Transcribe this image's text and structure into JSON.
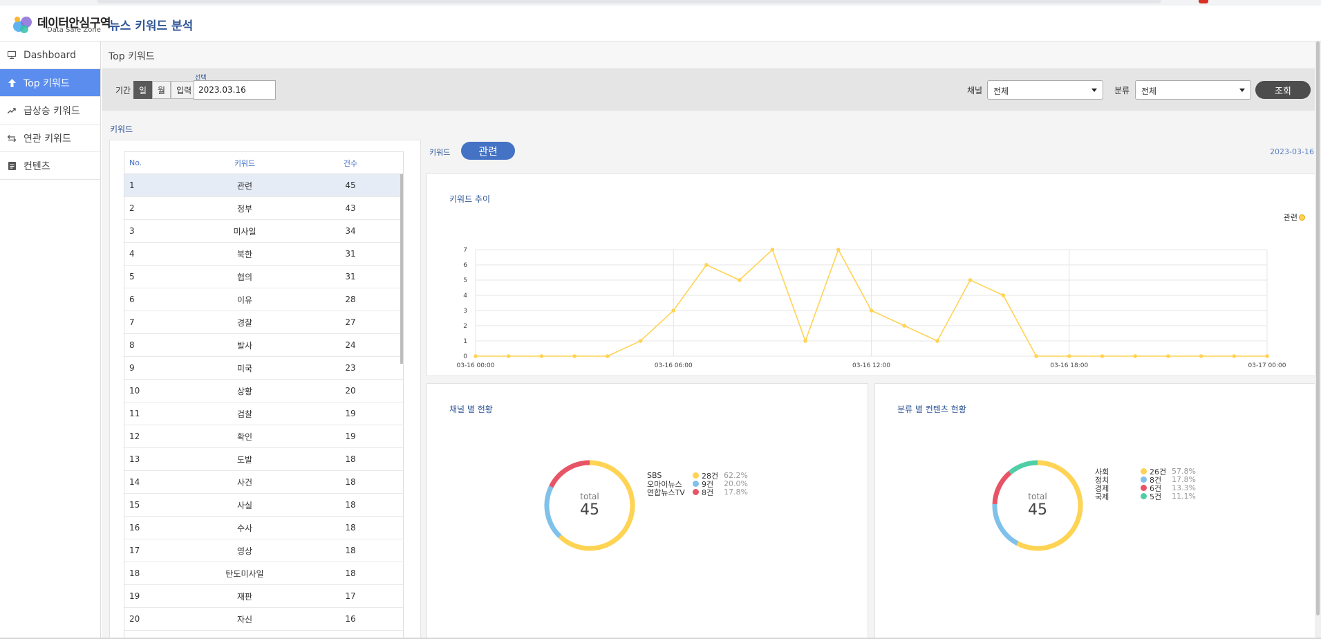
{
  "header": {
    "logo_title": "데이터안심구역",
    "logo_sub": "Data Safe Zone",
    "app_title": "뉴스 키워드 분석"
  },
  "sidebar": {
    "items": [
      {
        "label": "Dashboard",
        "icon": "monitor-icon",
        "active": false
      },
      {
        "label": "Top 키워드",
        "icon": "arrow-up-icon",
        "active": true
      },
      {
        "label": "급상승 키워드",
        "icon": "trending-up-icon",
        "active": false
      },
      {
        "label": "연관 키워드",
        "icon": "swap-icon",
        "active": false
      },
      {
        "label": "컨텐츠",
        "icon": "document-icon",
        "active": false
      }
    ]
  },
  "breadcrumb": "Top 키워드",
  "filter": {
    "period_label": "기간",
    "period_options": [
      "일",
      "월",
      "입력"
    ],
    "period_selected": "일",
    "date_tag": "선택",
    "date_value": "2023.03.16",
    "channel_label": "채널",
    "channel_value": "전체",
    "category_label": "분류",
    "category_value": "전체",
    "search_label": "조회"
  },
  "keywords": {
    "section_title": "키워드",
    "headers": {
      "no": "No.",
      "keyword": "키워드",
      "count": "건수"
    },
    "rows": [
      {
        "no": "1",
        "keyword": "관련",
        "count": "45"
      },
      {
        "no": "2",
        "keyword": "정부",
        "count": "43"
      },
      {
        "no": "3",
        "keyword": "미사일",
        "count": "34"
      },
      {
        "no": "4",
        "keyword": "북한",
        "count": "31"
      },
      {
        "no": "5",
        "keyword": "협의",
        "count": "31"
      },
      {
        "no": "6",
        "keyword": "이유",
        "count": "28"
      },
      {
        "no": "7",
        "keyword": "경찰",
        "count": "27"
      },
      {
        "no": "8",
        "keyword": "발사",
        "count": "24"
      },
      {
        "no": "9",
        "keyword": "미국",
        "count": "23"
      },
      {
        "no": "10",
        "keyword": "상황",
        "count": "20"
      },
      {
        "no": "11",
        "keyword": "검찰",
        "count": "19"
      },
      {
        "no": "12",
        "keyword": "확인",
        "count": "19"
      },
      {
        "no": "13",
        "keyword": "도발",
        "count": "18"
      },
      {
        "no": "14",
        "keyword": "사건",
        "count": "18"
      },
      {
        "no": "15",
        "keyword": "사실",
        "count": "18"
      },
      {
        "no": "16",
        "keyword": "수사",
        "count": "18"
      },
      {
        "no": "17",
        "keyword": "영상",
        "count": "18"
      },
      {
        "no": "18",
        "keyword": "탄도미사일",
        "count": "18"
      },
      {
        "no": "19",
        "keyword": "재판",
        "count": "17"
      },
      {
        "no": "20",
        "keyword": "자신",
        "count": "16"
      }
    ]
  },
  "detail": {
    "keyword_label": "키워드",
    "selected_keyword": "관련",
    "date": "2023-03-16"
  },
  "chart_data": [
    {
      "type": "line",
      "title": "키워드 추이",
      "xlabel": "",
      "ylabel": "",
      "x_ticks": [
        "03-16 00:00",
        "03-16 06:00",
        "03-16 12:00",
        "03-16 18:00",
        "03-17 00:00"
      ],
      "ylim": [
        0,
        7
      ],
      "y_ticks": [
        0,
        1,
        2,
        3,
        4,
        5,
        6,
        7
      ],
      "grid": true,
      "legend": "top-right",
      "series": [
        {
          "name": "관련",
          "color": "#ffd353",
          "values": [
            0,
            0,
            0,
            0,
            0,
            1,
            3,
            6,
            5,
            7,
            1,
            7,
            3,
            2,
            1,
            5,
            4,
            0,
            0,
            0,
            0,
            0,
            0,
            0,
            0
          ]
        }
      ]
    },
    {
      "type": "pie",
      "title": "채널 별 현황",
      "center_label": "total",
      "total": "45",
      "slices": [
        {
          "name": "SBS",
          "value": 28,
          "count": "28건",
          "pct": "62.2%",
          "color": "#ffd353"
        },
        {
          "name": "오마이뉴스",
          "value": 9,
          "count": "9건",
          "pct": "20.0%",
          "color": "#7fc1ea"
        },
        {
          "name": "연합뉴스TV",
          "value": 8,
          "count": "8건",
          "pct": "17.8%",
          "color": "#e75466"
        }
      ]
    },
    {
      "type": "pie",
      "title": "분류 별 컨텐츠 현황",
      "center_label": "total",
      "total": "45",
      "slices": [
        {
          "name": "사회",
          "value": 26,
          "count": "26건",
          "pct": "57.8%",
          "color": "#ffd353"
        },
        {
          "name": "정치",
          "value": 8,
          "count": "8건",
          "pct": "17.8%",
          "color": "#7fc1ea"
        },
        {
          "name": "경제",
          "value": 6,
          "count": "6건",
          "pct": "13.3%",
          "color": "#e75466"
        },
        {
          "name": "국제",
          "value": 5,
          "count": "5건",
          "pct": "11.1%",
          "color": "#4fcea6"
        }
      ]
    }
  ]
}
